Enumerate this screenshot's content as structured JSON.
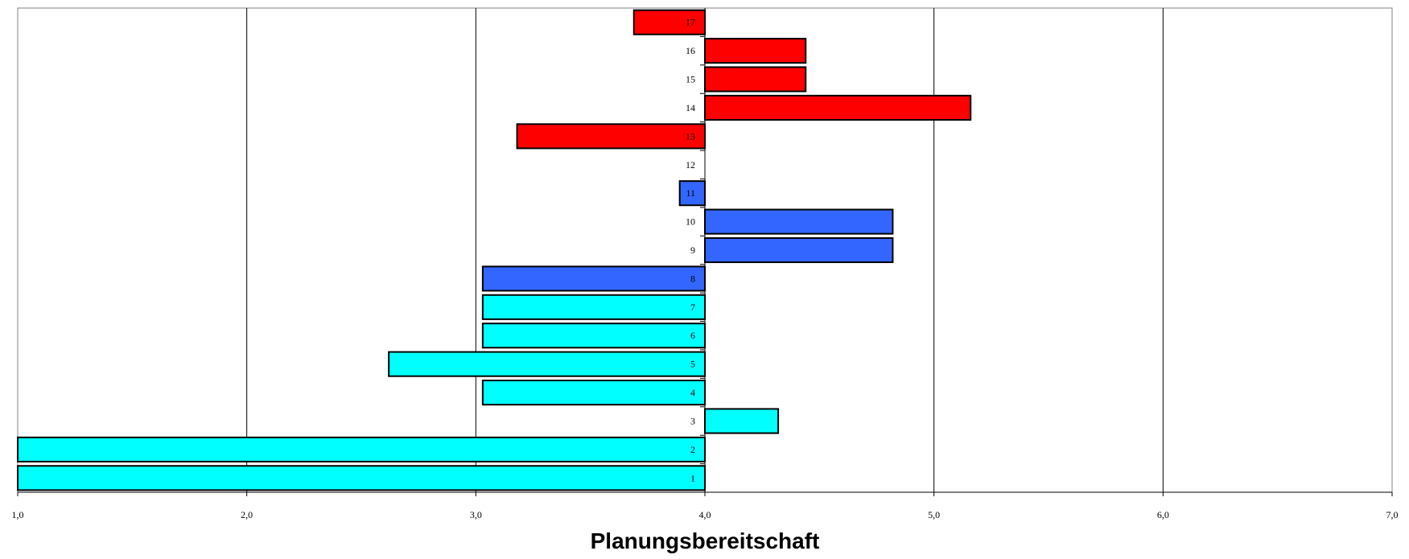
{
  "chart_data": {
    "type": "bar",
    "orientation": "horizontal",
    "baseline": 4.0,
    "title": "",
    "xlabel": "Planungsbereitschaft",
    "ylabel": "",
    "xlim": [
      1.0,
      7.0
    ],
    "x_ticks": [
      "1,0",
      "2,0",
      "3,0",
      "4,0",
      "5,0",
      "6,0",
      "7,0"
    ],
    "grid": "vertical",
    "legend": "none",
    "categories": [
      "1",
      "2",
      "3",
      "4",
      "5",
      "6",
      "7",
      "8",
      "9",
      "10",
      "11",
      "12",
      "13",
      "14",
      "15",
      "16",
      "17"
    ],
    "values": [
      1.0,
      1.0,
      4.32,
      3.03,
      2.62,
      3.03,
      3.03,
      3.03,
      4.82,
      4.82,
      3.89,
      4.0,
      3.18,
      5.16,
      4.44,
      4.44,
      3.69
    ],
    "colors": [
      "#00FFFF",
      "#00FFFF",
      "#00FFFF",
      "#00FFFF",
      "#00FFFF",
      "#00FFFF",
      "#00FFFF",
      "#3366FF",
      "#3366FF",
      "#3366FF",
      "#3366FF",
      "#3366FF",
      "#FF0000",
      "#FF0000",
      "#FF0000",
      "#FF0000",
      "#FF0000"
    ]
  }
}
